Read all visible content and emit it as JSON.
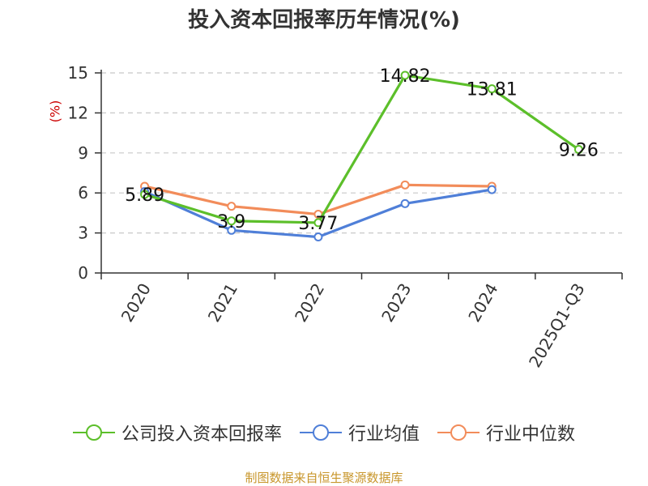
{
  "chart_data": {
    "type": "line",
    "title": "投入资本回报率历年情况(%)",
    "ylabel": "(%)",
    "xlabel": "",
    "categories": [
      "2020",
      "2021",
      "2022",
      "2023",
      "2024",
      "2025Q1-Q3"
    ],
    "ylim": [
      0,
      15
    ],
    "yticks": [
      0,
      3,
      6,
      9,
      12,
      15
    ],
    "grid": "horizontal dashed",
    "legend_position": "bottom",
    "series": [
      {
        "name": "公司投入资本回报率",
        "color": "#5cbf2a",
        "values": [
          5.89,
          3.9,
          3.77,
          14.82,
          13.81,
          9.26
        ],
        "labels": [
          "5.89",
          "3.9",
          "3.77",
          "14.82",
          "13.81",
          "9.26"
        ]
      },
      {
        "name": "行业均值",
        "color": "#4f7fd8",
        "values": [
          6.1,
          3.2,
          2.7,
          5.2,
          6.25,
          null
        ]
      },
      {
        "name": "行业中位数",
        "color": "#f28c5a",
        "values": [
          6.5,
          5.0,
          4.4,
          6.6,
          6.5,
          null
        ]
      }
    ]
  },
  "source": "制图数据来自恒生聚源数据库"
}
